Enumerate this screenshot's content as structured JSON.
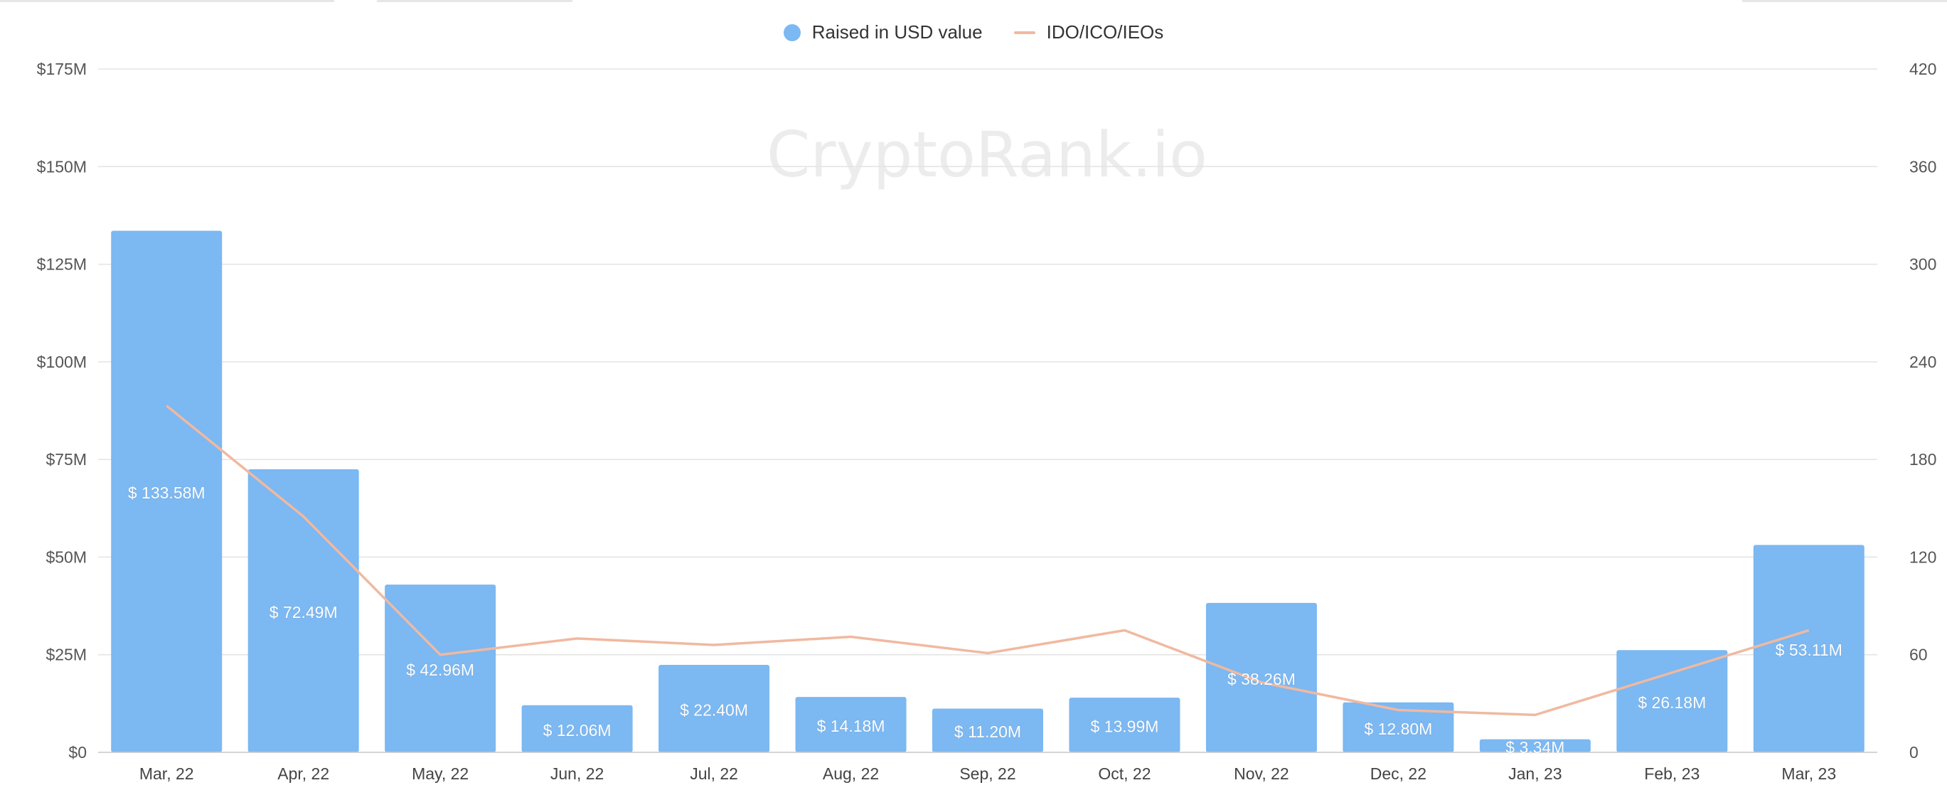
{
  "colors": {
    "bar": "#7cb8f2",
    "line": "#f0b9a0",
    "grid": "#e3e3e3",
    "axis_text": "#555555",
    "bar_label": "#ffffff",
    "watermark": "#ececec"
  },
  "watermark": "CryptoRank.io",
  "legend": {
    "bars_label": "Raised in USD value",
    "line_label": "IDO/ICO/IEOs"
  },
  "chart_data": {
    "type": "bar",
    "categories": [
      "Mar, 22",
      "Apr, 22",
      "May, 22",
      "Jun, 22",
      "Jul, 22",
      "Aug, 22",
      "Sep, 22",
      "Oct, 22",
      "Nov, 22",
      "Dec, 22",
      "Jan, 23",
      "Feb, 23",
      "Mar, 23"
    ],
    "series": [
      {
        "name": "Raised in USD value",
        "type": "bar",
        "axis": "left",
        "values": [
          133.58,
          72.49,
          42.96,
          12.06,
          22.4,
          14.18,
          11.2,
          13.99,
          38.26,
          12.8,
          3.34,
          26.18,
          53.11
        ],
        "labels": [
          "$ 133.58M",
          "$ 72.49M",
          "$ 42.96M",
          "$ 12.06M",
          "$ 22.40M",
          "$ 14.18M",
          "$ 11.20M",
          "$ 13.99M",
          "$ 38.26M",
          "$ 12.80M",
          "$ 3.34M",
          "$ 26.18M",
          "$ 53.11M"
        ]
      },
      {
        "name": "IDO/ICO/IEOs",
        "type": "line",
        "axis": "right",
        "values": [
          213,
          145,
          60,
          70,
          66,
          71,
          61,
          75,
          43,
          26,
          23,
          49,
          75
        ]
      }
    ],
    "y_left": {
      "ylim": [
        0,
        175
      ],
      "ticks": [
        0,
        25,
        50,
        75,
        100,
        125,
        150,
        175
      ],
      "tick_labels": [
        "$0",
        "$25M",
        "$50M",
        "$75M",
        "$100M",
        "$125M",
        "$150M",
        "$175M"
      ]
    },
    "y_right": {
      "ylim": [
        0,
        420
      ],
      "ticks": [
        0,
        60,
        120,
        180,
        240,
        300,
        360,
        420
      ],
      "tick_labels": [
        "0",
        "60",
        "120",
        "180",
        "240",
        "300",
        "360",
        "420"
      ]
    },
    "grid": true,
    "legend_position": "top-center"
  }
}
